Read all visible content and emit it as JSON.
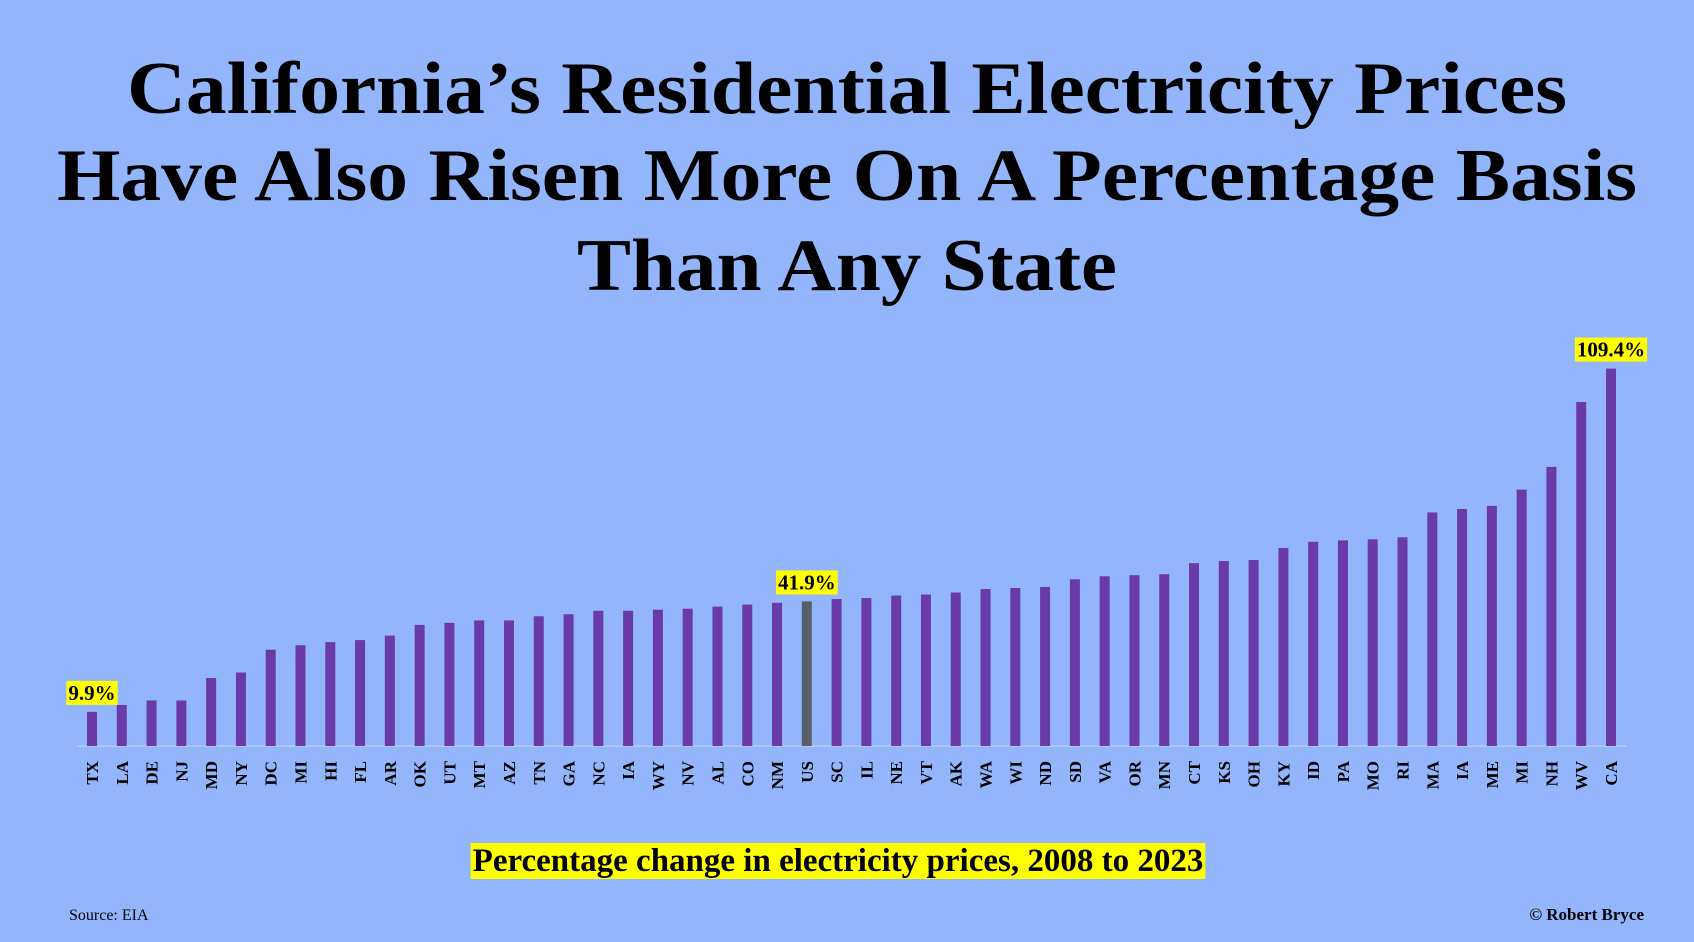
{
  "chart_data": {
    "type": "bar",
    "title": [
      "California’s Residential Electricity Prices",
      "Have Also Risen More On A Percentage Basis",
      "Than Any State"
    ],
    "subtitle": "Percentage change in electricity prices, 2008 to 2023",
    "source": "Source: EIA",
    "credit": "© Robert Bryce",
    "categories": [
      "TX",
      "LA",
      "DE",
      "NJ",
      "MD",
      "NY",
      "DC",
      "MI",
      "HI",
      "FL",
      "AR",
      "OK",
      "UT",
      "MT",
      "AZ",
      "TN",
      "GA",
      "NC",
      "IA",
      "WY",
      "NV",
      "AL",
      "CO",
      "NM",
      "US",
      "SC",
      "IL",
      "NE",
      "VT",
      "AK",
      "WA",
      "WI",
      "ND",
      "SD",
      "VA",
      "OR",
      "MN",
      "CT",
      "KS",
      "OH",
      "KY",
      "ID",
      "PA",
      "MO",
      "RI",
      "MA",
      "IA",
      "ME",
      "MI",
      "NH",
      "WV",
      "CA"
    ],
    "values": [
      9.9,
      11.9,
      13.2,
      13.2,
      19.7,
      21.3,
      27.9,
      29.2,
      30.1,
      30.7,
      32.0,
      35.1,
      35.7,
      36.4,
      36.4,
      37.6,
      38.2,
      39.2,
      39.2,
      39.5,
      39.8,
      40.4,
      41.0,
      41.5,
      41.9,
      42.6,
      42.9,
      43.6,
      43.9,
      44.5,
      45.5,
      45.8,
      46.1,
      48.3,
      49.2,
      49.5,
      49.8,
      53.0,
      53.6,
      53.9,
      57.4,
      59.2,
      59.6,
      59.9,
      60.5,
      67.7,
      68.7,
      69.6,
      74.3,
      80.9,
      99.7,
      109.4
    ],
    "value_labels": [
      "9.9%",
      null,
      null,
      null,
      null,
      null,
      null,
      null,
      null,
      null,
      null,
      null,
      null,
      null,
      null,
      null,
      null,
      null,
      null,
      null,
      null,
      null,
      null,
      null,
      "41.9%",
      null,
      null,
      null,
      null,
      null,
      null,
      null,
      null,
      null,
      null,
      null,
      null,
      null,
      null,
      null,
      null,
      null,
      null,
      null,
      null,
      null,
      null,
      null,
      null,
      null,
      null,
      "109.4%"
    ],
    "color": "#6a3aa8",
    "highlight": {
      "category_index": 24,
      "color": "#595e6b"
    }
  }
}
